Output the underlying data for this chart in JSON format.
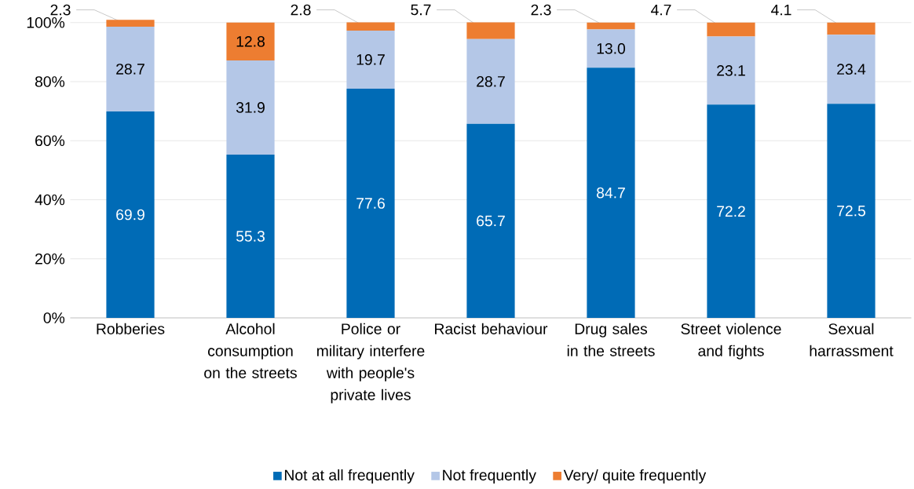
{
  "chart_data": {
    "type": "bar",
    "stacked": true,
    "categories": [
      "Robberies",
      "Alcohol consumption on the streets",
      "Police or military interfere with people's private lives",
      "Racist behaviour",
      "Drug sales in the streets",
      "Street violence and fights",
      "Sexual harrassment"
    ],
    "series": [
      {
        "name": "Not at all frequently",
        "color": "#006bb6",
        "values": [
          69.9,
          55.3,
          77.6,
          65.7,
          84.7,
          72.2,
          72.5
        ],
        "value_labels": [
          "69.9",
          "55.3",
          "77.6",
          "65.7",
          "84.7",
          "72.2",
          "72.5"
        ]
      },
      {
        "name": "Not frequently",
        "color": "#b4c7e7",
        "values": [
          28.7,
          31.9,
          19.7,
          28.7,
          13.0,
          23.1,
          23.4
        ],
        "value_labels": [
          "28.7",
          "31.9",
          "19.7",
          "28.7",
          "13.0",
          "23.1",
          "23.4"
        ]
      },
      {
        "name": "Very/ quite frequently",
        "color": "#ed7d31",
        "values": [
          2.3,
          12.8,
          2.8,
          5.7,
          2.3,
          4.7,
          4.1
        ],
        "value_labels": [
          "2.3",
          "12.8",
          "2.8",
          "5.7",
          "2.3",
          "4.7",
          "4.1"
        ]
      }
    ],
    "ylim": [
      0,
      101
    ],
    "yticks": [
      {
        "value": 0,
        "label": "0%"
      },
      {
        "value": 20,
        "label": "20%"
      },
      {
        "value": 40,
        "label": "40%"
      },
      {
        "value": 60,
        "label": "60%"
      },
      {
        "value": 80,
        "label": "80%"
      },
      {
        "value": 100,
        "label": "100%"
      }
    ],
    "grid": "y",
    "legend": "bottom"
  }
}
